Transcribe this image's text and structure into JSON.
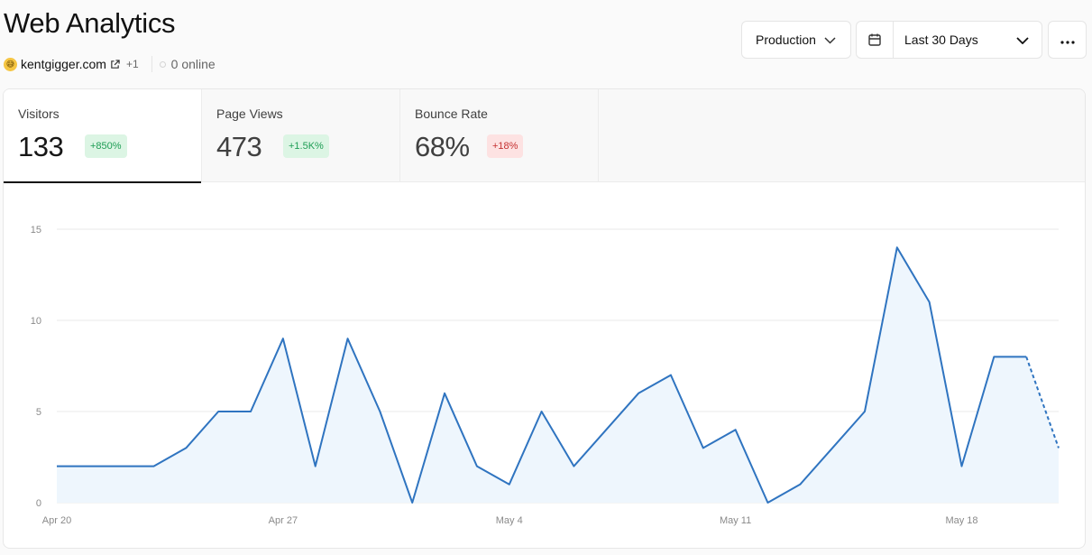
{
  "header": {
    "title": "Web Analytics",
    "site": {
      "avatar_glyph": "😅",
      "domain": "kentgigger.com",
      "extra_count": "+1",
      "external_icon": "external-link-icon"
    },
    "online": "0 online"
  },
  "toolbar": {
    "environment": "Production",
    "date_range": "Last 30 Days",
    "more_icon": "ellipsis-icon"
  },
  "metrics": [
    {
      "label": "Visitors",
      "value": "133",
      "change": "+850%",
      "trend": "up",
      "active": true
    },
    {
      "label": "Page Views",
      "value": "473",
      "change": "+1.5K%",
      "trend": "up",
      "active": false
    },
    {
      "label": "Bounce Rate",
      "value": "68%",
      "change": "+18%",
      "trend": "down",
      "active": false
    }
  ],
  "colors": {
    "line": "#2f74c0",
    "area": "#eef6fd",
    "up_badge": "#dcf5e4",
    "down_badge": "#fde2e2",
    "grid": "#e8e8e8"
  },
  "chart_data": {
    "type": "area",
    "series": [
      {
        "values": [
          2,
          2,
          2,
          2,
          3,
          5,
          5,
          9,
          2,
          9,
          5,
          0,
          6,
          2,
          1,
          5,
          2,
          4,
          6,
          7,
          3,
          4,
          0,
          1,
          3,
          5,
          14,
          11,
          2,
          8,
          8,
          3
        ],
        "dashed_last_segment": true
      }
    ],
    "x_dates": [
      "Apr 20",
      "Apr 21",
      "Apr 22",
      "Apr 23",
      "Apr 24",
      "Apr 25",
      "Apr 26",
      "Apr 27",
      "Apr 28",
      "Apr 29",
      "Apr 30",
      "May 1",
      "May 2",
      "May 3",
      "May 4",
      "May 5",
      "May 6",
      "May 7",
      "May 8",
      "May 9",
      "May 10",
      "May 11",
      "May 12",
      "May 13",
      "May 14",
      "May 15",
      "May 16",
      "May 17",
      "May 18",
      "May 19",
      "May 20",
      "May 21"
    ],
    "x_tick_labels": [
      "Apr 20",
      "Apr 27",
      "May 4",
      "May 11",
      "May 18"
    ],
    "y_ticks": [
      0,
      5,
      10,
      15
    ],
    "ylim": [
      0,
      15
    ],
    "grid": true,
    "legend": "none"
  }
}
